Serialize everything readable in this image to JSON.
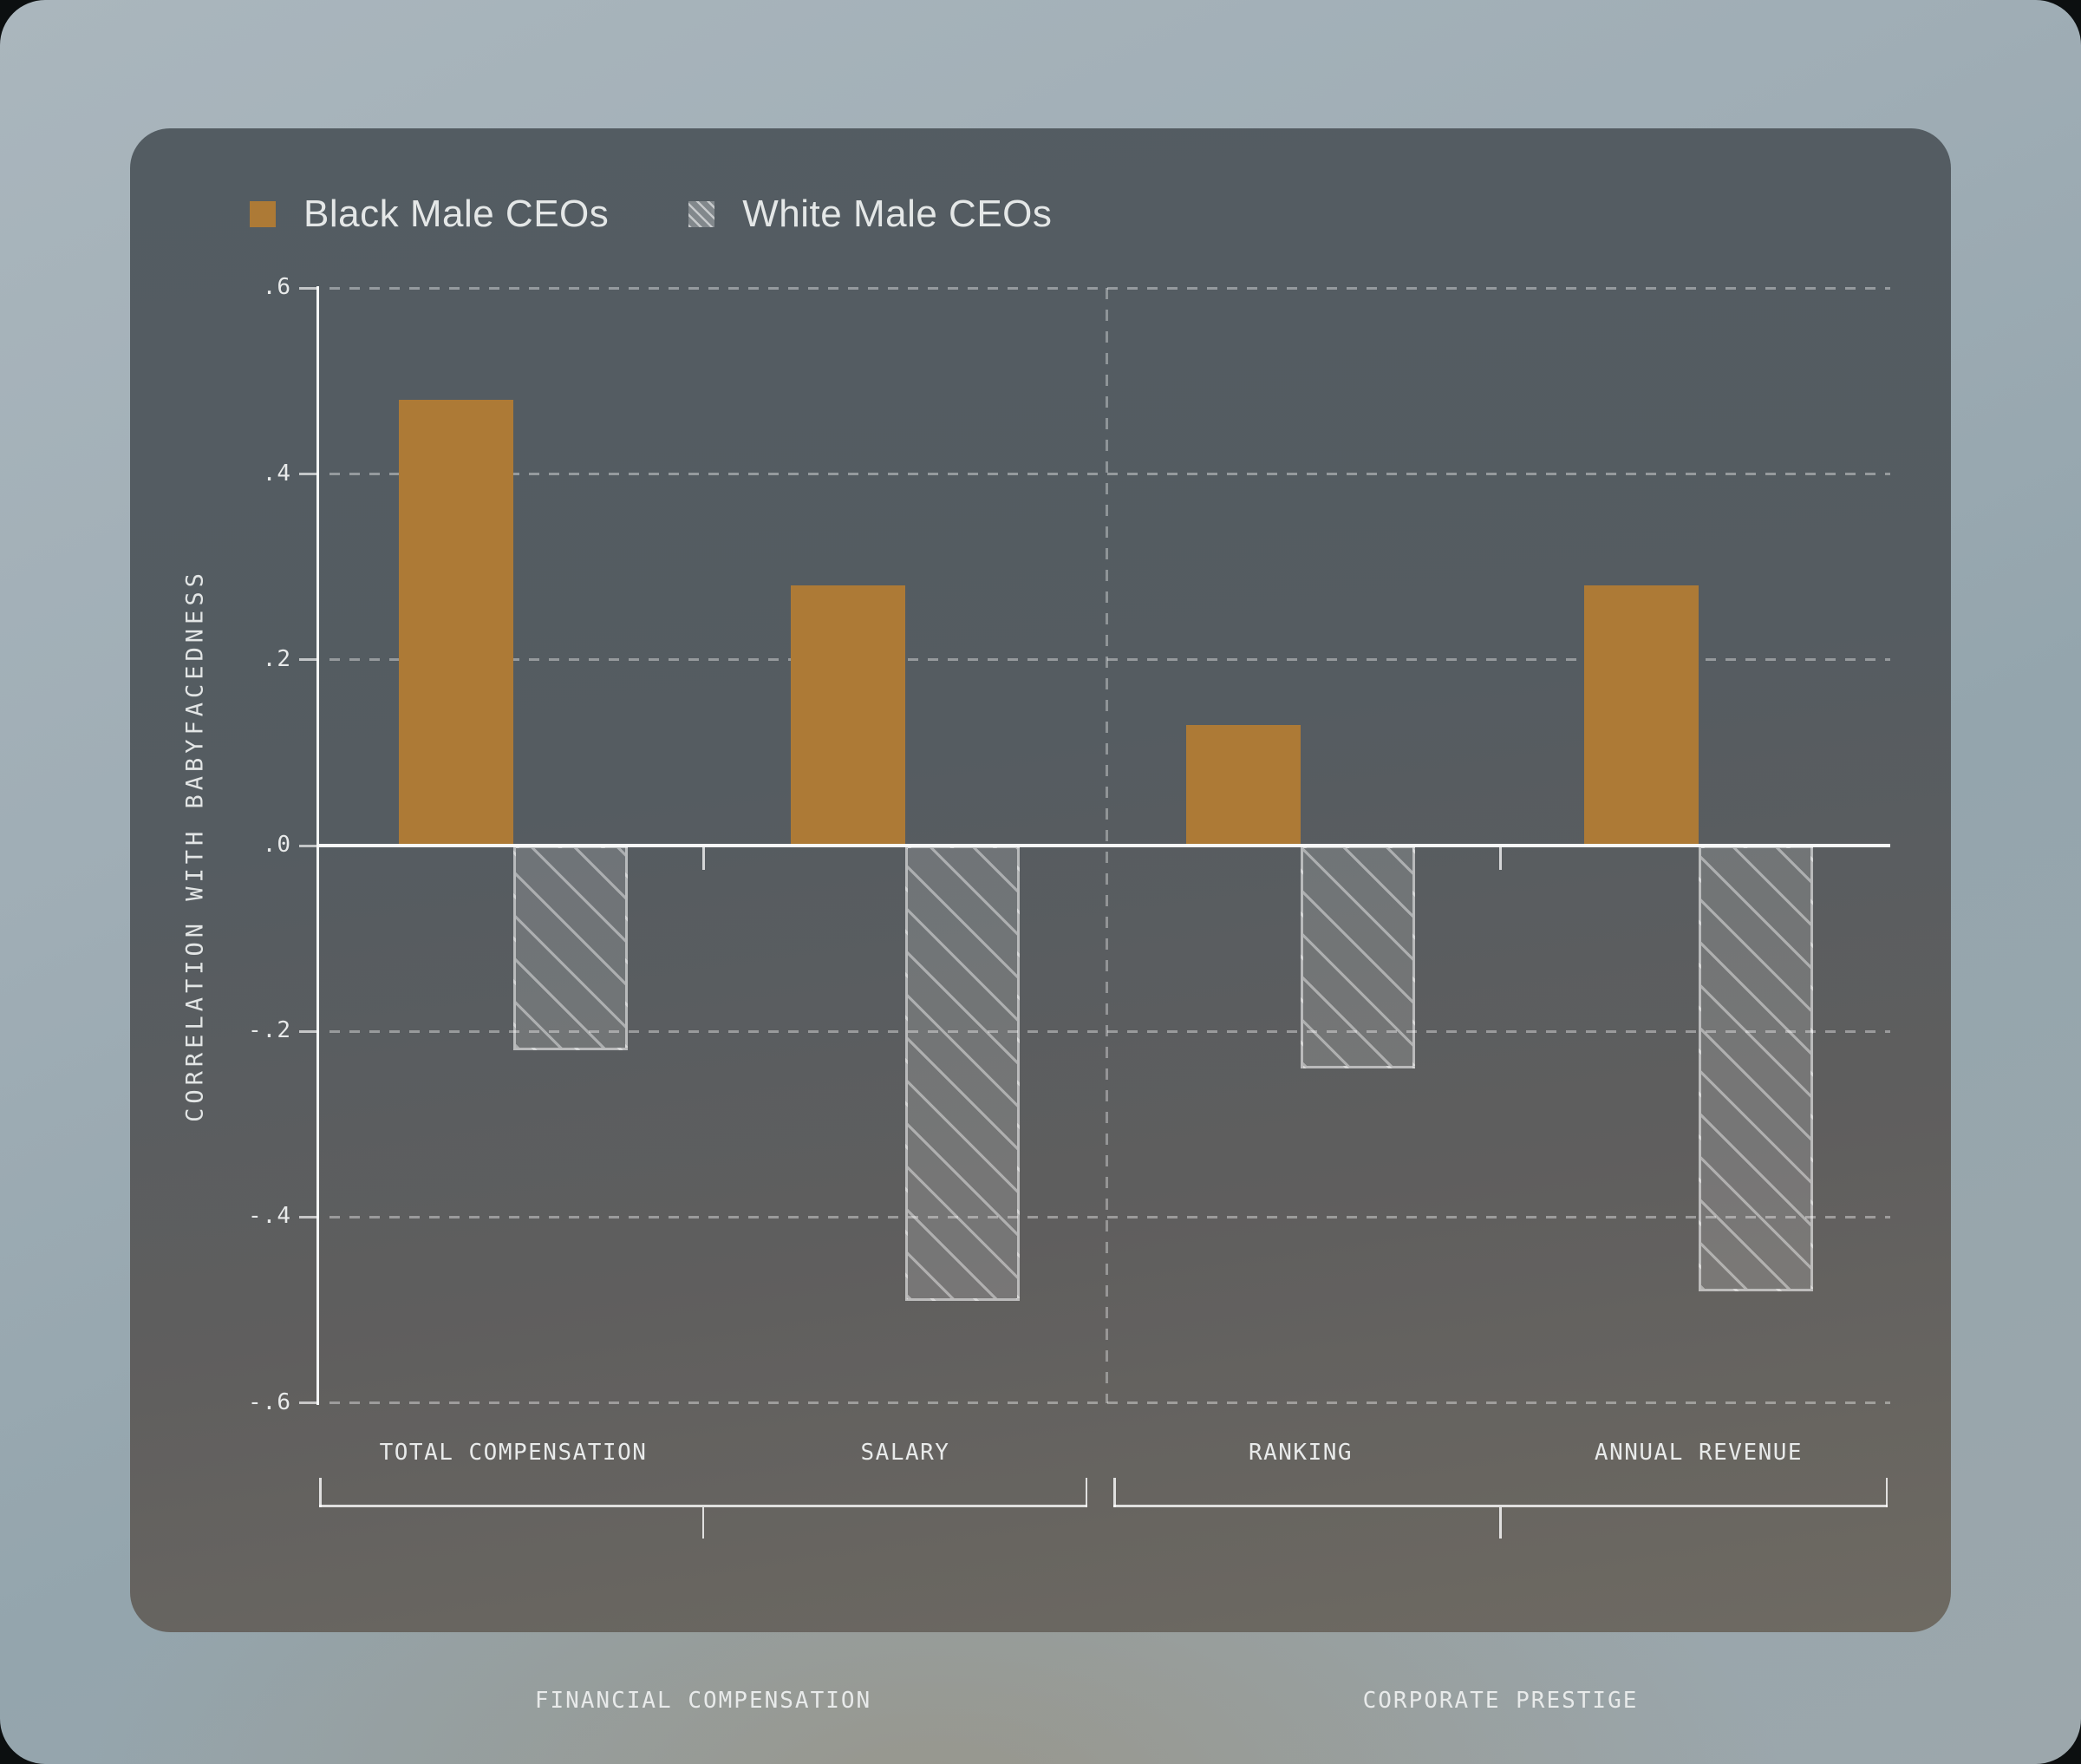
{
  "colors": {
    "black_male_ceos_bar": "#ad7a36",
    "white_male_ceos_bar_fill": "rgba(255,255,255,0.15)",
    "card_background_top": "#535c62",
    "card_background_bottom": "#6e6a62",
    "page_background": "#9fadb5",
    "text": "#e8eaea"
  },
  "legend": {
    "items": [
      {
        "label": "Black Male CEOs",
        "style": "solid"
      },
      {
        "label": "White Male CEOs",
        "style": "hatched"
      }
    ]
  },
  "chart_data": {
    "type": "bar",
    "title": "",
    "xlabel": "",
    "ylabel": "CORRELATION WITH BABYFACEDNESS",
    "ylim": [
      -0.6,
      0.6
    ],
    "grid": "dashed horizontal at each tick, dashed vertical divider between groups",
    "legend_position": "top-left",
    "yticks": [
      {
        "label": ".6",
        "value": 0.6
      },
      {
        "label": ".4",
        "value": 0.4
      },
      {
        "label": ".2",
        "value": 0.2
      },
      {
        "label": ".0",
        "value": 0.0
      },
      {
        "label": "-.2",
        "value": -0.2
      },
      {
        "label": "-.4",
        "value": -0.4
      },
      {
        "label": "-.6",
        "value": -0.6
      }
    ],
    "series_names": [
      "Black Male CEOs",
      "White Male CEOs"
    ],
    "groups": [
      {
        "label": "FINANCIAL COMPENSATION",
        "categories": [
          {
            "label": "TOTAL COMPENSATION",
            "values": {
              "Black Male CEOs": 0.48,
              "White Male CEOs": -0.22
            }
          },
          {
            "label": "SALARY",
            "values": {
              "Black Male CEOs": 0.28,
              "White Male CEOs": -0.49
            }
          }
        ]
      },
      {
        "label": "CORPORATE PRESTIGE",
        "categories": [
          {
            "label": "RANKING",
            "values": {
              "Black Male CEOs": 0.13,
              "White Male CEOs": -0.24
            }
          },
          {
            "label": "ANNUAL REVENUE",
            "values": {
              "Black Male CEOs": 0.28,
              "White Male CEOs": -0.48
            }
          }
        ]
      }
    ]
  }
}
